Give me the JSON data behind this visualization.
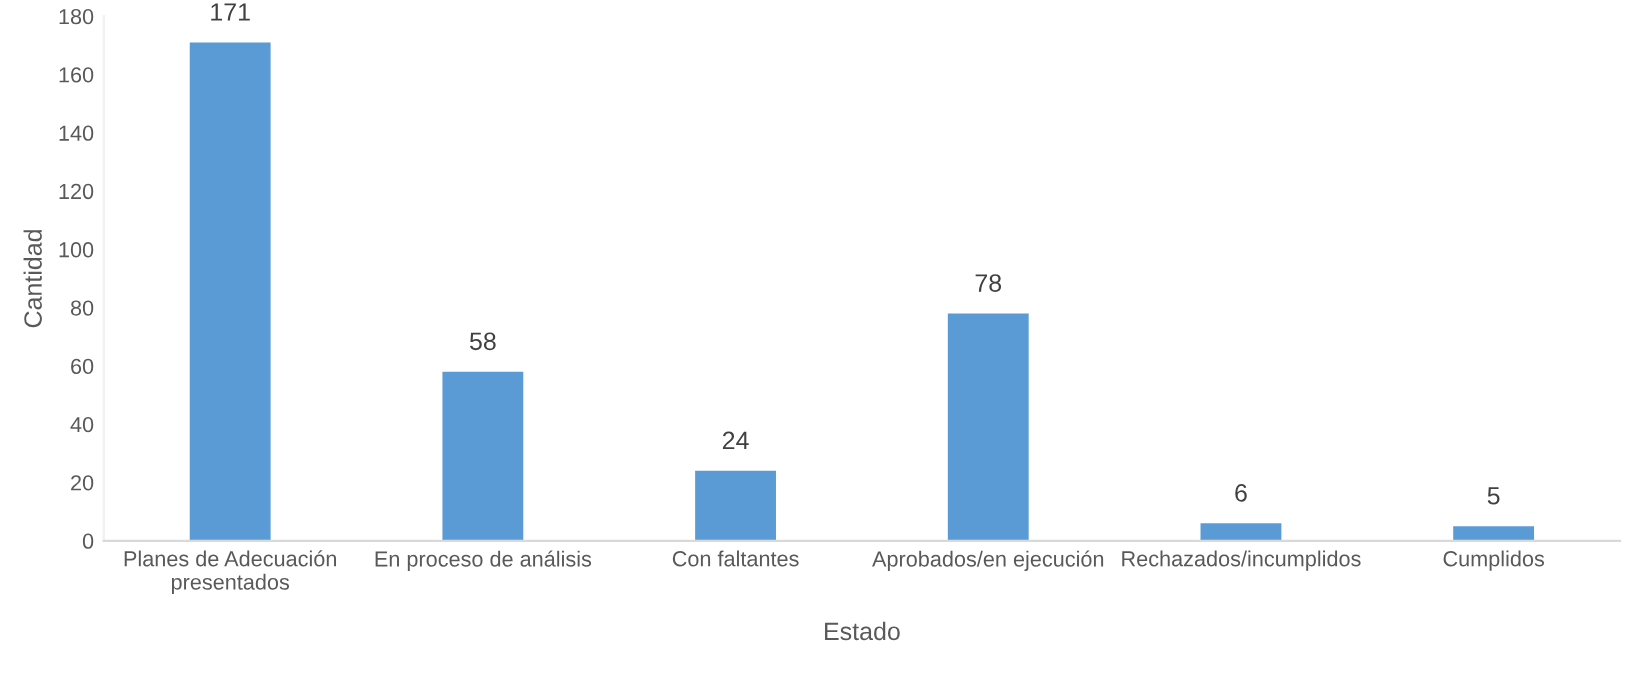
{
  "chart_data": {
    "type": "bar",
    "xlabel": "Estado",
    "ylabel": "Cantidad",
    "categories": [
      "Planes de Adecuación\npresentados",
      "En proceso de análisis",
      "Con faltantes",
      "Aprobados/en ejecución",
      "Rechazados/incumplidos",
      "Cumplidos"
    ],
    "values": [
      171,
      58,
      24,
      78,
      6,
      5
    ],
    "color": "#5b9bd5",
    "ylim": [
      0,
      180
    ],
    "yticks": [
      0,
      20,
      40,
      60,
      80,
      100,
      120,
      140,
      160,
      180
    ],
    "data_labels": true,
    "grid": false,
    "legend": false
  }
}
